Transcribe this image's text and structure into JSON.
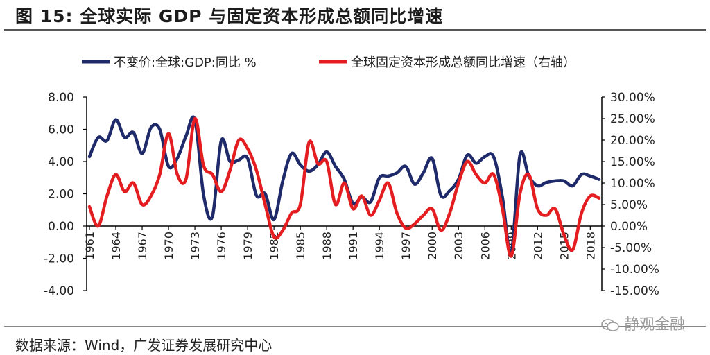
{
  "header": {
    "title": "图 15: 全球实际 GDP 与固定资本形成总额同比增速"
  },
  "footer": {
    "source": "数据来源：Wind，广发证券发展研究中心",
    "watermark": "静观金融"
  },
  "chart_data": {
    "type": "line",
    "title": "图 15: 全球实际 GDP 与固定资本形成总额同比增速",
    "x": [
      1961,
      1962,
      1963,
      1964,
      1965,
      1966,
      1967,
      1968,
      1969,
      1970,
      1971,
      1972,
      1973,
      1974,
      1975,
      1976,
      1977,
      1978,
      1979,
      1980,
      1981,
      1982,
      1983,
      1984,
      1985,
      1986,
      1987,
      1988,
      1989,
      1990,
      1991,
      1992,
      1993,
      1994,
      1995,
      1996,
      1997,
      1998,
      1999,
      2000,
      2001,
      2002,
      2003,
      2004,
      2005,
      2006,
      2007,
      2008,
      2009,
      2010,
      2011,
      2012,
      2013,
      2014,
      2015,
      2016,
      2017,
      2018,
      2019
    ],
    "xtick_labels": [
      "1961",
      "1964",
      "1967",
      "1970",
      "1973",
      "1976",
      "1979",
      "1982",
      "1985",
      "1988",
      "1991",
      "1994",
      "1997",
      "2000",
      "2003",
      "2006",
      "2009",
      "2012",
      "2015",
      "2018"
    ],
    "xtick_values": [
      1961,
      1964,
      1967,
      1970,
      1973,
      1976,
      1979,
      1982,
      1985,
      1988,
      1991,
      1994,
      1997,
      2000,
      2003,
      2006,
      2009,
      2012,
      2015,
      2018
    ],
    "left_axis": {
      "ylim": [
        -4,
        8
      ],
      "ticks": [
        8,
        6,
        4,
        2,
        0,
        -2,
        -4
      ],
      "tick_labels": [
        "8.00",
        "6.00",
        "4.00",
        "2.00",
        "0.00",
        "-2.00",
        "-4.00"
      ]
    },
    "right_axis": {
      "ylim": [
        -15,
        30
      ],
      "ticks": [
        30,
        25,
        20,
        15,
        10,
        5,
        0,
        -5,
        -10,
        -15
      ],
      "tick_labels": [
        "30.00%",
        "25.00%",
        "20.00%",
        "15.00%",
        "10.00%",
        "5.00%",
        "0.00%",
        "-5.00%",
        "-10.00%",
        "-15.00%"
      ]
    },
    "series": [
      {
        "name": "不变价:全球:GDP:同比 %",
        "axis": "left",
        "color": "#1F2A6B",
        "values": [
          4.3,
          5.5,
          5.3,
          6.6,
          5.5,
          5.8,
          4.5,
          6.1,
          6.0,
          3.7,
          4.2,
          5.6,
          6.6,
          1.9,
          0.6,
          5.3,
          4.0,
          4.1,
          4.2,
          1.9,
          2.0,
          0.4,
          2.8,
          4.5,
          3.8,
          3.4,
          3.8,
          4.6,
          3.7,
          2.9,
          1.4,
          1.8,
          1.5,
          3.0,
          3.1,
          3.3,
          3.7,
          2.6,
          3.3,
          4.2,
          1.9,
          2.2,
          2.9,
          4.4,
          3.9,
          4.3,
          4.3,
          1.8,
          -1.7,
          4.4,
          3.1,
          2.5,
          2.7,
          2.8,
          2.8,
          2.5,
          3.2,
          3.1,
          2.9
        ]
      },
      {
        "name": "全球固定资本形成总额同比增速（右轴）",
        "axis": "right",
        "color": "#E41E20",
        "values": [
          4.5,
          0.0,
          7.0,
          12.0,
          8.0,
          10.0,
          5.0,
          7.0,
          12.0,
          21.5,
          12.0,
          11.0,
          25.0,
          14.0,
          12.0,
          8.0,
          13.0,
          20.0,
          18.0,
          13.0,
          5.0,
          -2.5,
          -1.0,
          3.0,
          5.0,
          19.5,
          14.5,
          15.0,
          5.0,
          10.0,
          4.0,
          7.0,
          2.5,
          6.0,
          10.0,
          3.0,
          -0.5,
          0.5,
          2.5,
          4.0,
          -1.0,
          3.0,
          10.0,
          15.0,
          12.0,
          10.0,
          12.0,
          4.0,
          -7.0,
          7.5,
          12.0,
          4.0,
          2.5,
          4.0,
          -2.0,
          -5.5,
          3.0,
          7.0,
          6.5
        ]
      }
    ],
    "legend": "top",
    "grid": false
  }
}
